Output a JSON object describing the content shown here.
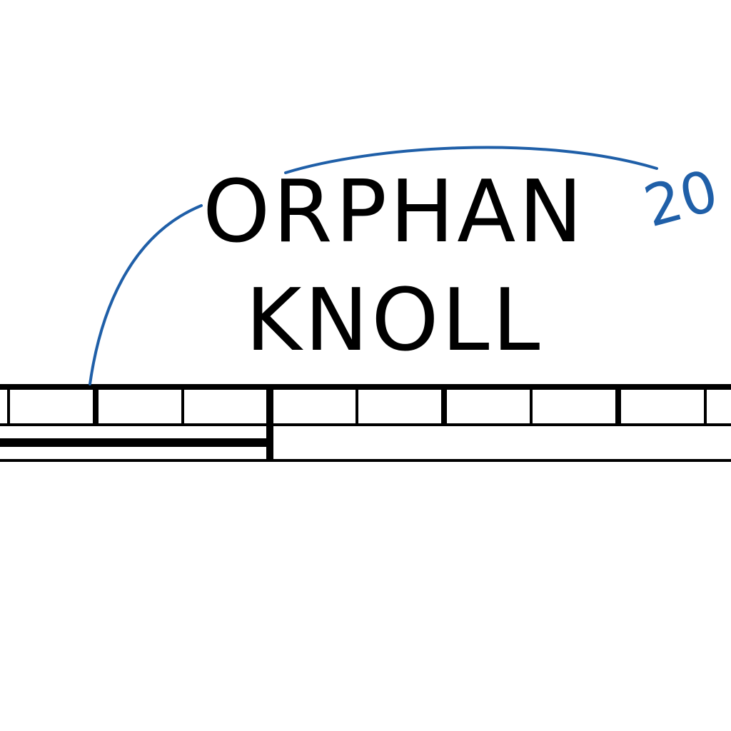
{
  "map": {
    "place_name": {
      "line1": "ORPHAN",
      "line2": "KNOLL"
    },
    "annotation": {
      "text": "20",
      "color": "#1f5fa8"
    },
    "colors": {
      "ink": "#000000",
      "background": "#ffffff",
      "annotation": "#1f5fa8"
    }
  }
}
